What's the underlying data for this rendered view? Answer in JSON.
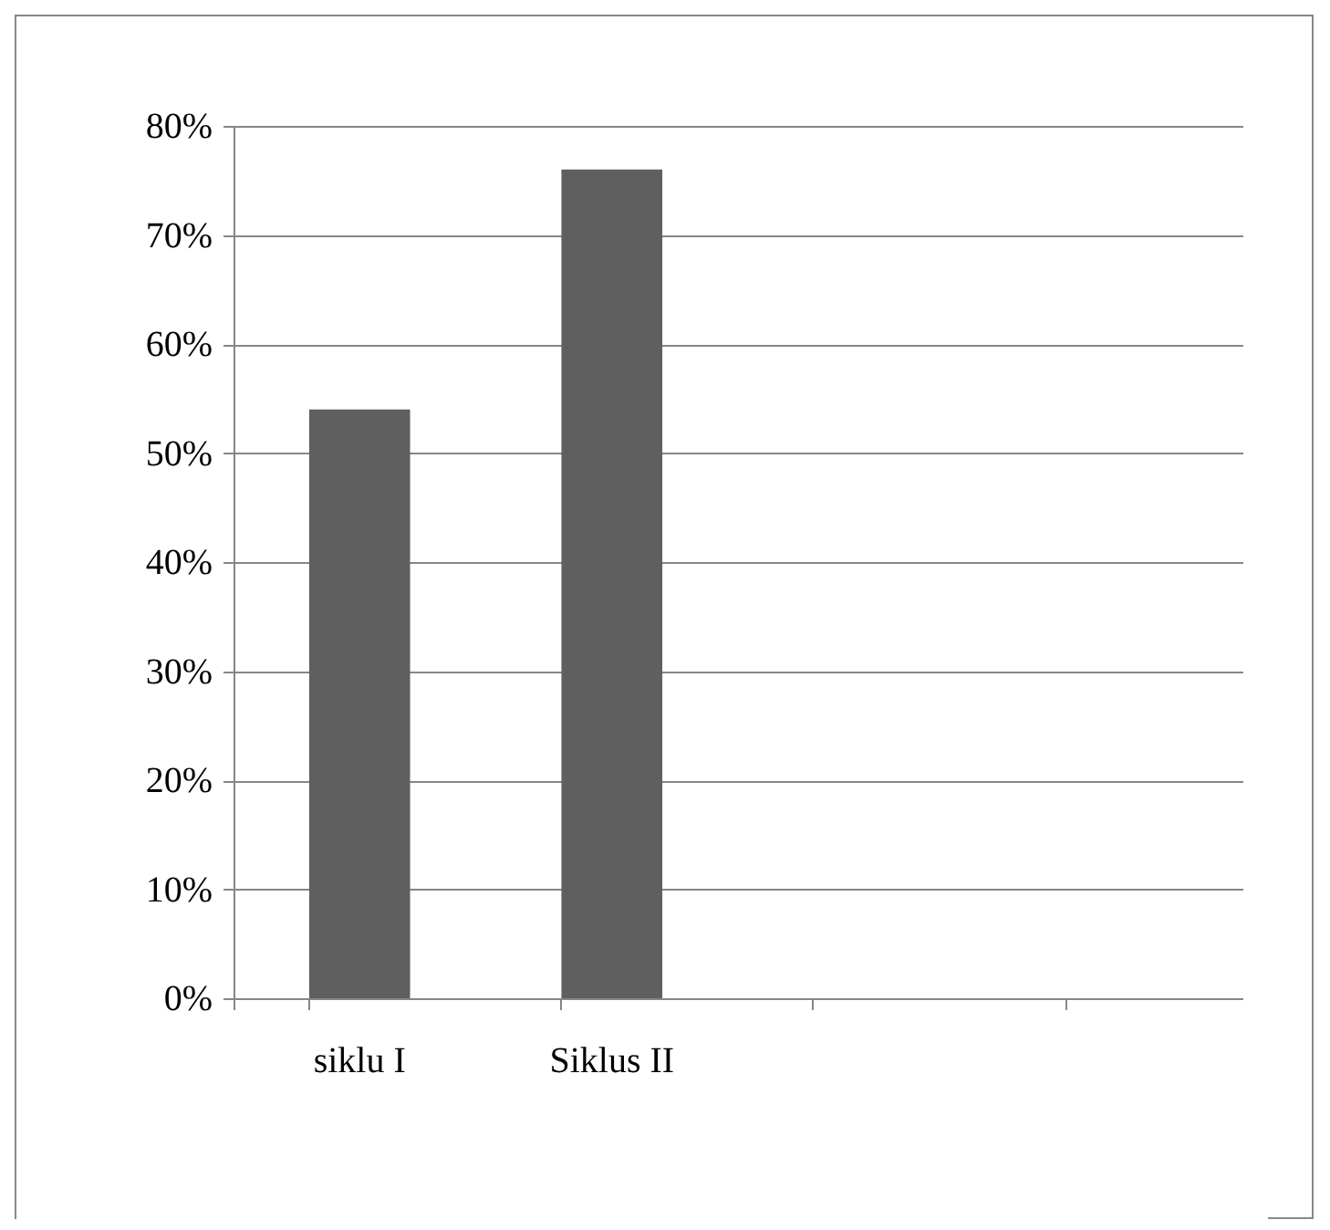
{
  "chart_data": {
    "type": "bar",
    "categories": [
      "siklu I",
      "Siklus II",
      null,
      null
    ],
    "values": [
      54,
      76,
      null,
      null
    ],
    "color": "#5f5f5f",
    "ylim": [
      0,
      80
    ],
    "yticks": [
      {
        "value": 0,
        "label": "0%"
      },
      {
        "value": 10,
        "label": "10%"
      },
      {
        "value": 20,
        "label": "20%"
      },
      {
        "value": 30,
        "label": "30%"
      },
      {
        "value": 40,
        "label": "40%"
      },
      {
        "value": 50,
        "label": "50%"
      },
      {
        "value": 60,
        "label": "60%"
      },
      {
        "value": 70,
        "label": "70%"
      },
      {
        "value": 80,
        "label": "80%"
      }
    ],
    "grid": "y"
  }
}
